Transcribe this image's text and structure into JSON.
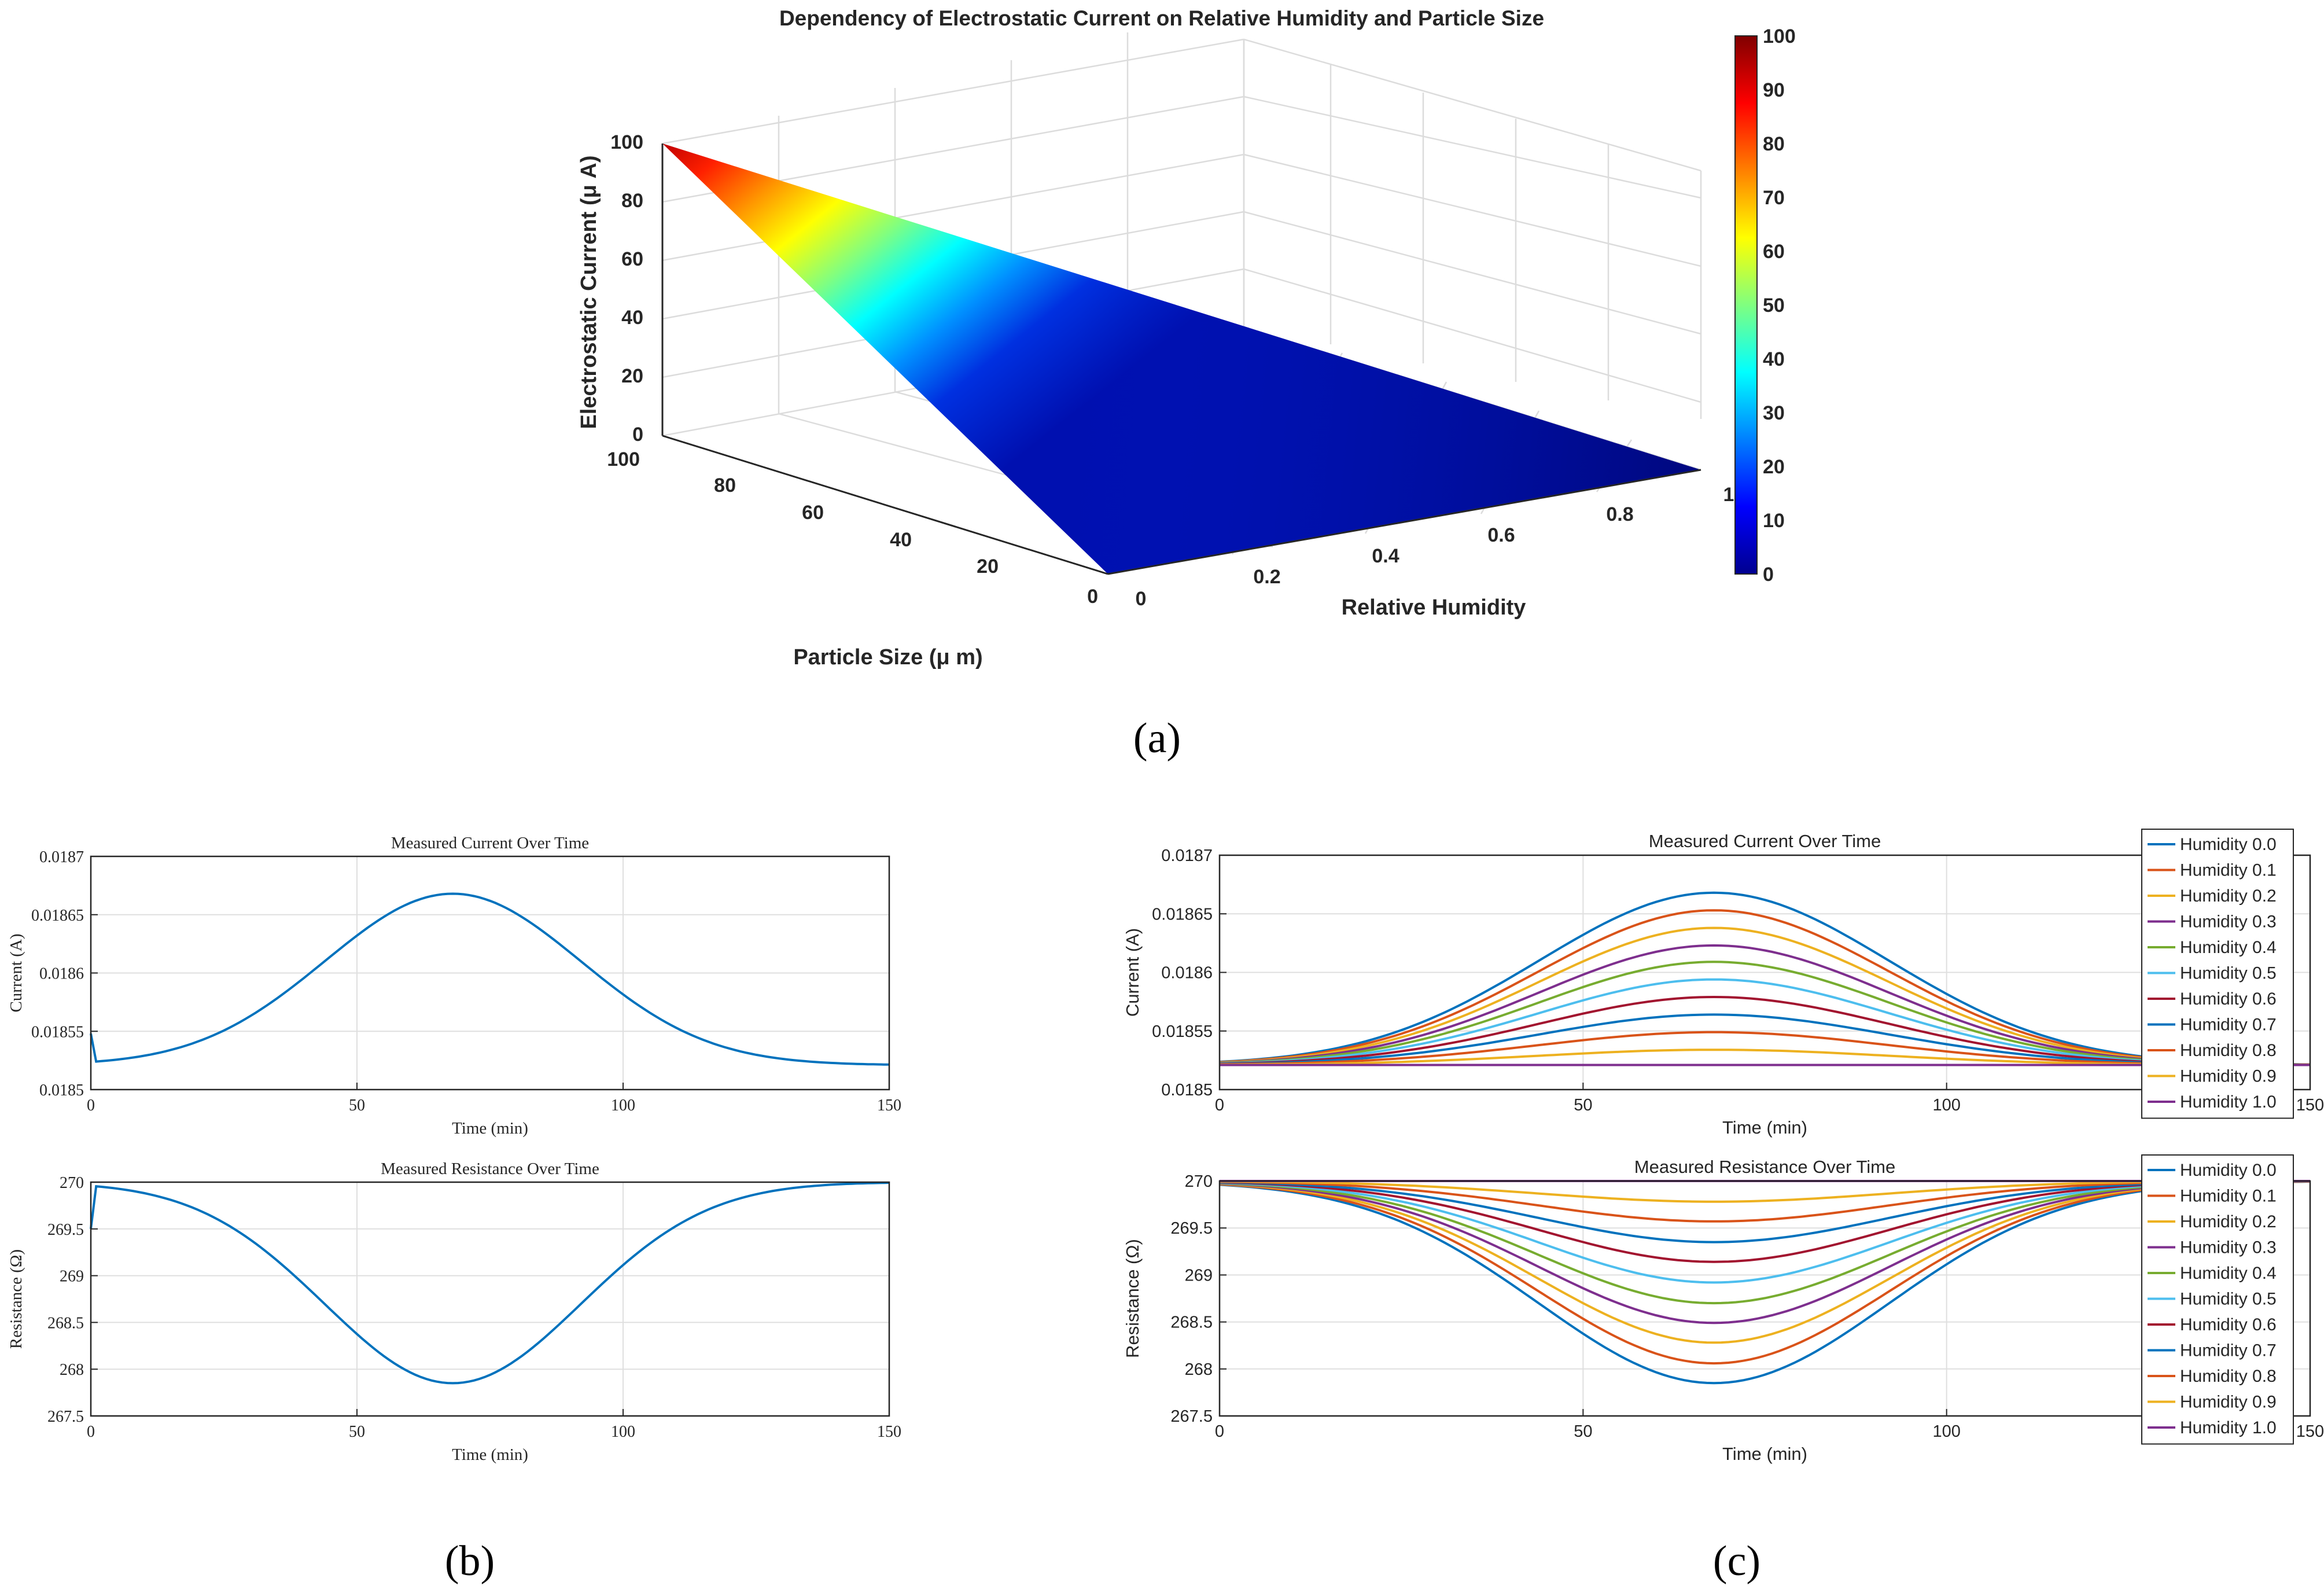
{
  "panel_labels": {
    "a": "(a)",
    "b": "(b)",
    "c": "(c)"
  },
  "chart_data": [
    {
      "id": "a",
      "type": "surface",
      "title": "Dependency of Electrostatic Current on Relative Humidity and Particle Size",
      "xlabel": "Relative Humidity",
      "ylabel": "Particle Size (μ m)",
      "zlabel": "Electrostatic Current (μ A)",
      "x_ticks": [
        "0",
        "0.2",
        "0.4",
        "0.6",
        "0.8",
        "1"
      ],
      "y_ticks": [
        "0",
        "20",
        "40",
        "60",
        "80",
        "100"
      ],
      "z_ticks": [
        "0",
        "20",
        "40",
        "60",
        "80",
        "100"
      ],
      "xlim": [
        0,
        1
      ],
      "ylim": [
        0,
        100
      ],
      "zlim": [
        0,
        100
      ],
      "surface_corners": [
        {
          "humidity": 0,
          "size": 100,
          "current": 100
        },
        {
          "humidity": 0,
          "size": 0,
          "current": 0
        },
        {
          "humidity": 1,
          "size": 100,
          "current": 0
        },
        {
          "humidity": 1,
          "size": 0,
          "current": 0
        }
      ],
      "colorbar": {
        "ticks": [
          "0",
          "10",
          "20",
          "30",
          "40",
          "50",
          "60",
          "70",
          "80",
          "90",
          "100"
        ],
        "range": [
          0,
          100
        ],
        "colormap": "jet"
      },
      "grid": true
    },
    {
      "id": "b1",
      "type": "line",
      "title": "Measured Current Over Time",
      "xlabel": "Time (min)",
      "ylabel": "Current (A)",
      "xlim": [
        0,
        150
      ],
      "ylim": [
        0.0185,
        0.0187
      ],
      "x_ticks": [
        "0",
        "50",
        "100",
        "150"
      ],
      "y_ticks": [
        "0.0185",
        "0.01855",
        "0.0186",
        "0.01865",
        "0.0187"
      ],
      "grid": true,
      "baseline": 0.018521,
      "peak_gain": 0.000147,
      "peak_time": 68,
      "start_value": 0.018548,
      "series_color": "#0072BD"
    },
    {
      "id": "b2",
      "type": "line",
      "title": "Measured Resistance Over Time",
      "xlabel": "Time (min)",
      "ylabel": "Resistance (Ω)",
      "xlim": [
        0,
        150
      ],
      "ylim": [
        267.5,
        270
      ],
      "x_ticks": [
        "0",
        "50",
        "100",
        "150"
      ],
      "y_ticks": [
        "267.5",
        "268",
        "268.5",
        "269",
        "269.5",
        "270"
      ],
      "grid": true,
      "baseline": 270.0,
      "dip": 2.15,
      "peak_time": 68,
      "start_value": 269.5,
      "series_color": "#0072BD"
    },
    {
      "id": "c1",
      "type": "line",
      "title": "Measured Current Over Time",
      "xlabel": "Time (min)",
      "ylabel": "Current (A)",
      "xlim": [
        0,
        150
      ],
      "ylim": [
        0.0185,
        0.0187
      ],
      "x_ticks": [
        "0",
        "50",
        "100",
        "150"
      ],
      "y_ticks": [
        "0.0185",
        "0.01855",
        "0.0186",
        "0.01865",
        "0.0187"
      ],
      "grid": true,
      "baseline": 0.018521,
      "peak_time": 68,
      "series": [
        {
          "name": "Humidity 0.0",
          "peak": 0.018668,
          "color": "#0072BD"
        },
        {
          "name": "Humidity 0.1",
          "peak": 0.018653,
          "color": "#D95319"
        },
        {
          "name": "Humidity 0.2",
          "peak": 0.018638,
          "color": "#EDB120"
        },
        {
          "name": "Humidity 0.3",
          "peak": 0.018623,
          "color": "#7E2F8E"
        },
        {
          "name": "Humidity 0.4",
          "peak": 0.018609,
          "color": "#77AC30"
        },
        {
          "name": "Humidity 0.5",
          "peak": 0.018594,
          "color": "#4DBEEE"
        },
        {
          "name": "Humidity 0.6",
          "peak": 0.018579,
          "color": "#A2142F"
        },
        {
          "name": "Humidity 0.7",
          "peak": 0.018564,
          "color": "#0072BD"
        },
        {
          "name": "Humidity 0.8",
          "peak": 0.018549,
          "color": "#D95319"
        },
        {
          "name": "Humidity 0.9",
          "peak": 0.018534,
          "color": "#EDB120"
        },
        {
          "name": "Humidity 1.0",
          "peak": 0.018521,
          "color": "#7E2F8E"
        }
      ],
      "legend": "top-right"
    },
    {
      "id": "c2",
      "type": "line",
      "title": "Measured Resistance Over Time",
      "xlabel": "Time (min)",
      "ylabel": "Resistance (Ω)",
      "xlim": [
        0,
        150
      ],
      "ylim": [
        267.5,
        270
      ],
      "x_ticks": [
        "0",
        "50",
        "100",
        "150"
      ],
      "y_ticks": [
        "267.5",
        "268",
        "268.5",
        "269",
        "269.5",
        "270"
      ],
      "grid": true,
      "baseline": 270.0,
      "peak_time": 68,
      "series": [
        {
          "name": "Humidity 0.0",
          "min": 267.85,
          "color": "#0072BD"
        },
        {
          "name": "Humidity 0.1",
          "min": 268.06,
          "color": "#D95319"
        },
        {
          "name": "Humidity 0.2",
          "min": 268.28,
          "color": "#EDB120"
        },
        {
          "name": "Humidity 0.3",
          "min": 268.49,
          "color": "#7E2F8E"
        },
        {
          "name": "Humidity 0.4",
          "min": 268.7,
          "color": "#77AC30"
        },
        {
          "name": "Humidity 0.5",
          "min": 268.92,
          "color": "#4DBEEE"
        },
        {
          "name": "Humidity 0.6",
          "min": 269.14,
          "color": "#A2142F"
        },
        {
          "name": "Humidity 0.7",
          "min": 269.35,
          "color": "#0072BD"
        },
        {
          "name": "Humidity 0.8",
          "min": 269.57,
          "color": "#D95319"
        },
        {
          "name": "Humidity 0.9",
          "min": 269.78,
          "color": "#EDB120"
        },
        {
          "name": "Humidity 1.0",
          "min": 270.0,
          "color": "#7E2F8E"
        }
      ],
      "legend": "top-right"
    }
  ]
}
